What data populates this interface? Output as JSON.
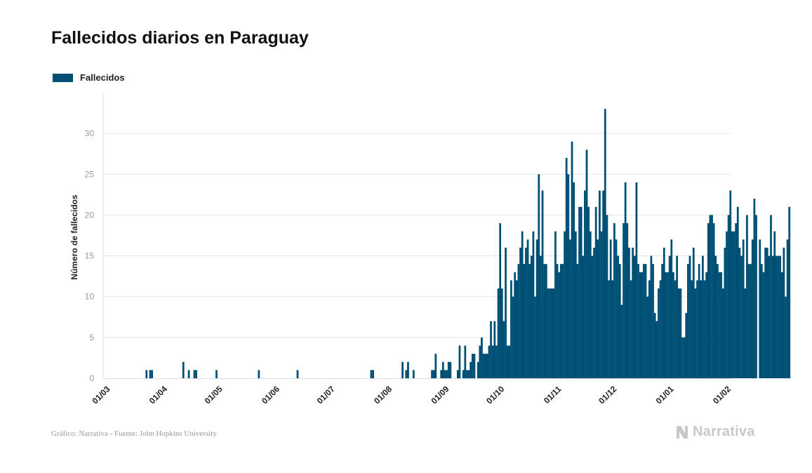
{
  "chart_data": {
    "type": "bar",
    "title": "Fallecidos diarios en Paraguay",
    "ylabel": "Número de fallecidos",
    "xlabel": "",
    "ylim": [
      0,
      35
    ],
    "yticks": [
      0,
      5,
      10,
      15,
      20,
      25,
      30
    ],
    "x_tick_labels": [
      "01/03",
      "01/04",
      "01/05",
      "01/06",
      "01/07",
      "01/08",
      "01/09",
      "01/10",
      "01/11",
      "01/12",
      "01/01",
      "01/02"
    ],
    "x_range": [
      "2020-02-26",
      "2021-02-01"
    ],
    "grid": true,
    "legend_position": "top-left",
    "color": "#004f74",
    "series": [
      {
        "name": "Fallecidos",
        "start_date": "2020-03-01",
        "values": [
          0,
          0,
          0,
          0,
          0,
          0,
          0,
          0,
          0,
          0,
          0,
          0,
          0,
          0,
          0,
          0,
          0,
          0,
          0,
          1,
          0,
          1,
          1,
          0,
          0,
          0,
          0,
          0,
          0,
          0,
          0,
          0,
          0,
          0,
          0,
          0,
          0,
          0,
          0,
          2,
          0,
          0,
          1,
          0,
          0,
          1,
          1,
          0,
          0,
          0,
          0,
          0,
          0,
          0,
          0,
          0,
          0,
          1,
          0,
          0,
          0,
          0,
          0,
          0,
          0,
          0,
          0,
          0,
          0,
          0,
          0,
          0,
          0,
          0,
          0,
          0,
          0,
          0,
          0,
          0,
          1,
          0,
          0,
          0,
          0,
          0,
          0,
          0,
          0,
          0,
          0,
          0,
          0,
          0,
          0,
          0,
          0,
          0,
          0,
          0,
          0,
          1,
          0,
          0,
          0,
          0,
          0,
          0,
          0,
          0,
          0,
          0,
          0,
          0,
          0,
          0,
          0,
          0,
          0,
          0,
          0,
          0,
          0,
          0,
          0,
          0,
          0,
          0,
          0,
          0,
          0,
          0,
          0,
          0,
          0,
          0,
          0,
          0,
          0,
          0,
          0,
          1,
          1,
          0,
          0,
          0,
          0,
          0,
          0,
          0,
          0,
          0,
          0,
          0,
          0,
          0,
          0,
          0,
          2,
          0,
          1,
          2,
          0,
          0,
          1,
          0,
          0,
          0,
          0,
          0,
          0,
          0,
          0,
          0,
          1,
          1,
          3,
          0,
          0,
          1,
          2,
          1,
          1,
          2,
          2,
          0,
          0,
          0,
          1,
          4,
          0,
          1,
          4,
          1,
          1,
          2,
          3,
          3,
          0,
          2,
          4,
          5,
          3,
          3,
          3,
          4,
          7,
          4,
          7,
          4,
          11,
          19,
          11,
          7,
          16,
          4,
          4,
          12,
          10,
          13,
          12,
          14,
          16,
          18,
          14,
          16,
          17,
          14,
          15,
          18,
          10,
          17,
          25,
          15,
          23,
          14,
          14,
          11,
          11,
          11,
          11,
          18,
          14,
          13,
          14,
          14,
          18,
          27,
          25,
          17,
          29,
          24,
          18,
          14,
          21,
          21,
          15,
          23,
          28,
          21,
          18,
          15,
          16,
          21,
          17,
          23,
          18,
          23,
          33,
          20,
          12,
          17,
          12,
          19,
          17,
          15,
          14,
          9,
          19,
          24,
          19,
          16,
          12,
          16,
          15,
          24,
          14,
          13,
          13,
          14,
          14,
          10,
          12,
          15,
          14,
          8,
          7,
          11,
          12,
          14,
          16,
          13,
          13,
          15,
          17,
          13,
          12,
          15,
          11,
          11,
          5,
          5,
          8,
          14,
          15,
          12,
          16,
          11,
          12,
          14,
          12,
          15,
          12,
          13,
          19,
          20,
          20,
          19,
          15,
          14,
          13,
          13,
          11,
          16,
          18,
          20,
          23,
          18,
          18,
          19,
          21,
          16,
          15,
          17,
          11,
          20,
          14,
          14,
          17,
          22,
          20,
          0,
          17,
          14,
          13,
          16,
          16,
          15,
          20,
          15,
          18,
          15,
          15,
          15,
          13,
          16,
          10,
          17,
          21
        ]
      }
    ]
  },
  "legend": {
    "label": "Fallecidos"
  },
  "footer": {
    "source": "Gráfico: Narrativa - Fuente: John Hopkins University",
    "logo_text": "Narrativa"
  }
}
